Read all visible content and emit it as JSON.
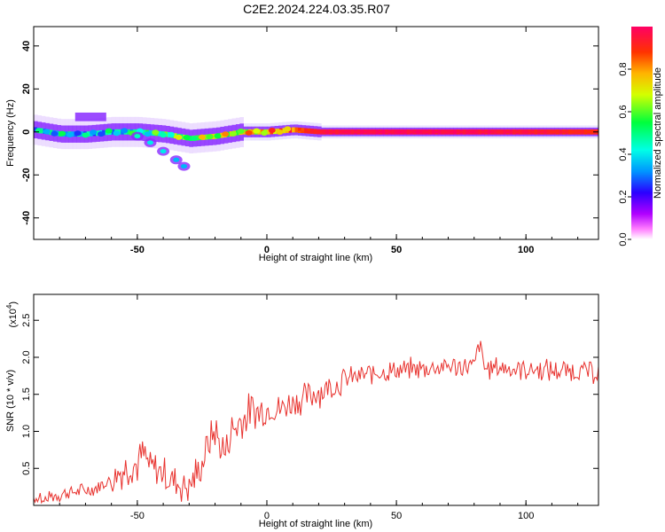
{
  "title": "C2E2.2024.224.03.35.R07",
  "colors": {
    "snr_line": "#e8322e",
    "ridge_core": "#e8262a",
    "frame": "#000000"
  },
  "chart_data": [
    {
      "type": "heatmap",
      "xlabel": "Height of straight line (km)",
      "ylabel": "Frequency (Hz)",
      "xlim": [
        -90,
        128
      ],
      "ylim": [
        -50,
        49
      ],
      "xticks": [
        -50,
        0,
        50,
        100
      ],
      "yticks": [
        -40,
        -20,
        0,
        20,
        40
      ],
      "colorbar": {
        "label": "Normalized spectral amplitude",
        "range": [
          0,
          1
        ],
        "ticks": [
          "0.0",
          "0.2",
          "0.4",
          "0.6",
          "0.8"
        ],
        "tick_values": [
          0.0,
          0.2,
          0.4,
          0.6,
          0.8
        ]
      },
      "ridge": {
        "x": [
          -90,
          -80,
          -70,
          -60,
          -50,
          -40,
          -30,
          -20,
          -10,
          0,
          10,
          20,
          40,
          60,
          80,
          100,
          128
        ],
        "frequency": [
          1,
          -1,
          -1,
          0,
          0,
          -1,
          -3,
          -2,
          0,
          0,
          1,
          0,
          0,
          0,
          0,
          0,
          0
        ],
        "amplitude": [
          0.35,
          0.4,
          0.35,
          0.4,
          0.45,
          0.5,
          0.6,
          0.65,
          0.7,
          0.75,
          0.85,
          0.95,
          0.98,
          0.98,
          0.97,
          0.95,
          0.9
        ]
      },
      "branch": {
        "x": [
          -50,
          -45,
          -40,
          -35,
          -32
        ],
        "frequency": [
          -2,
          -5,
          -9,
          -13,
          -16
        ],
        "amplitude": [
          0.35,
          0.3,
          0.3,
          0.25,
          0.25
        ]
      }
    },
    {
      "type": "line",
      "xlabel": "Height of straight line (km)",
      "ylabel": "SNR (10 * v/v)",
      "scale_label": "(x10",
      "scale_exponent": "4",
      "xlim": [
        -90,
        128
      ],
      "ylim": [
        0,
        2.85
      ],
      "xticks": [
        -50,
        0,
        50,
        100
      ],
      "yticks": [
        "0.5",
        "1.0",
        "1.5",
        "2.0",
        "2.5"
      ],
      "ytick_values": [
        0.5,
        1.0,
        1.5,
        2.0,
        2.5
      ],
      "series": [
        {
          "x": [
            -90,
            -85,
            -80,
            -75,
            -70,
            -65,
            -60,
            -55,
            -50,
            -48,
            -45,
            -40,
            -35,
            -30,
            -25,
            -22,
            -20,
            -18,
            -16,
            -14,
            -12,
            -10,
            -5,
            0,
            5,
            10,
            15,
            20,
            25,
            30,
            40,
            50,
            60,
            70,
            80,
            82,
            84,
            90,
            100,
            110,
            120,
            128
          ],
          "values": [
            0.1,
            0.12,
            0.15,
            0.18,
            0.2,
            0.25,
            0.35,
            0.5,
            0.55,
            0.7,
            0.5,
            0.45,
            0.3,
            0.25,
            0.55,
            0.9,
            1.0,
            0.8,
            0.7,
            1.0,
            1.05,
            1.15,
            1.25,
            1.3,
            1.3,
            1.4,
            1.45,
            1.55,
            1.6,
            1.7,
            1.78,
            1.82,
            1.85,
            1.88,
            1.87,
            2.2,
            1.85,
            1.86,
            1.84,
            1.82,
            1.82,
            1.8
          ]
        }
      ]
    }
  ]
}
